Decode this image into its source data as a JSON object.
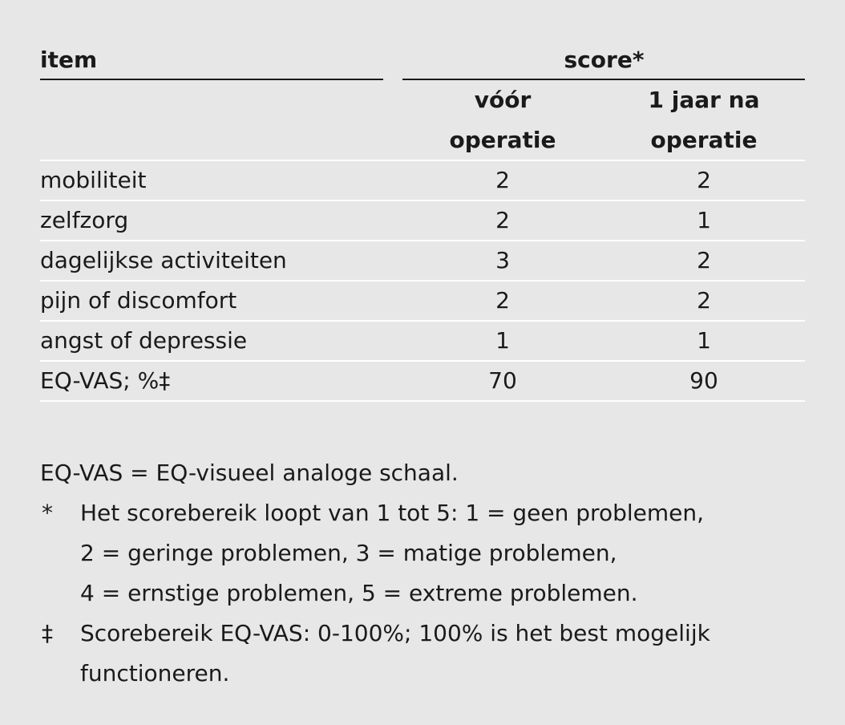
{
  "table": {
    "header": {
      "item_label": "item",
      "score_label": "score*",
      "col1_lines": [
        "vóór",
        "operatie"
      ],
      "col2_lines": [
        "1 jaar na",
        "operatie"
      ]
    },
    "rows": [
      {
        "item": "mobiliteit",
        "before": "2",
        "after": "2"
      },
      {
        "item": "zelfzorg",
        "before": "2",
        "after": "1"
      },
      {
        "item": "dagelijkse activiteiten",
        "before": "3",
        "after": "2"
      },
      {
        "item": "pijn of discomfort",
        "before": "2",
        "after": "2"
      },
      {
        "item": "angst of depressie",
        "before": "1",
        "after": "1"
      },
      {
        "item": "EQ-VAS; %‡",
        "before": "70",
        "after": "90"
      }
    ]
  },
  "notes": {
    "abbreviation": "EQ-VAS = EQ-visueel analoge schaal.",
    "footnotes": [
      {
        "mark": "*",
        "lines": [
          "Het scorebereik loopt van 1 tot 5: 1 = geen problemen,",
          "2 = geringe problemen, 3 = matige problemen,",
          "4 = ernstige problemen, 5 = extreme problemen."
        ]
      },
      {
        "mark": "‡",
        "lines": [
          "Scorebereik EQ-VAS: 0-100%; 100% is het best mogelijk",
          "functioneren."
        ]
      }
    ]
  }
}
